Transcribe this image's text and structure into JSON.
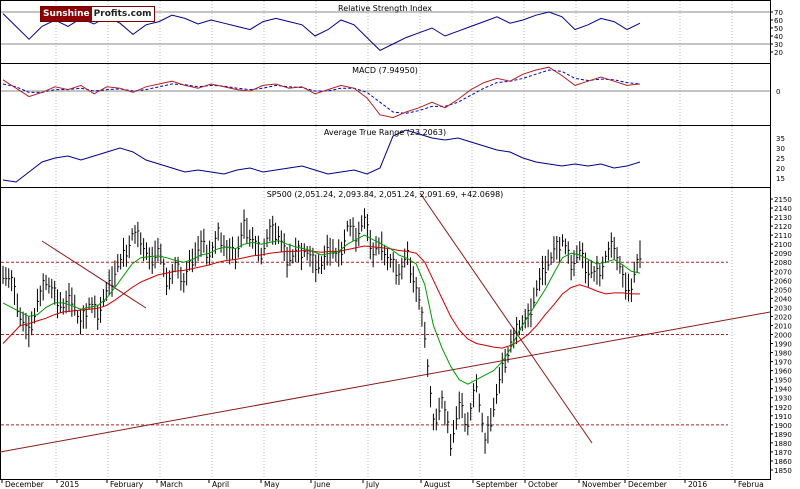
{
  "logo": {
    "part1": "Sunshine",
    "part2": "Profits.com"
  },
  "chart_data": [
    {
      "type": "line",
      "title": "Relative Strength Index",
      "ylim": [
        10,
        80
      ],
      "y_ticks": [
        70,
        60,
        50,
        40,
        30,
        20
      ],
      "reference_lines": [
        70,
        30
      ],
      "series": [
        {
          "values": [
            68,
            52,
            36,
            52,
            60,
            52,
            62,
            55,
            64,
            56,
            42,
            54,
            58,
            66,
            62,
            55,
            60,
            56,
            52,
            48,
            58,
            62,
            58,
            54,
            40,
            48,
            60,
            54,
            38,
            22,
            30,
            38,
            44,
            50,
            40,
            46,
            52,
            58,
            64,
            56,
            60,
            66,
            70,
            64,
            48,
            54,
            62,
            58,
            48,
            56
          ]
        }
      ]
    },
    {
      "type": "line",
      "title": "MACD (7.94950)",
      "y_ticks": [
        0
      ],
      "series": [
        {
          "values": [
            16,
            4,
            -8,
            -2,
            6,
            2,
            8,
            -4,
            6,
            4,
            -2,
            6,
            10,
            14,
            8,
            4,
            10,
            6,
            2,
            0,
            8,
            10,
            4,
            6,
            -4,
            2,
            8,
            4,
            -10,
            -34,
            -38,
            -30,
            -24,
            -16,
            -24,
            -12,
            2,
            12,
            18,
            14,
            24,
            30,
            34,
            22,
            8,
            14,
            20,
            14,
            8,
            10
          ]
        },
        {
          "values": [
            10,
            6,
            -2,
            -2,
            2,
            2,
            4,
            0,
            2,
            3,
            0,
            2,
            6,
            10,
            9,
            6,
            8,
            7,
            4,
            2,
            4,
            8,
            6,
            5,
            0,
            0,
            4,
            4,
            -2,
            -16,
            -30,
            -32,
            -28,
            -22,
            -22,
            -16,
            -6,
            4,
            12,
            14,
            18,
            24,
            30,
            28,
            18,
            15,
            17,
            16,
            12,
            10
          ]
        }
      ]
    },
    {
      "type": "line",
      "title": "Average True Range (23.2063)",
      "ylim": [
        11,
        40
      ],
      "y_ticks": [
        35,
        30,
        25,
        20,
        15
      ],
      "series": [
        {
          "values": [
            14,
            13,
            18,
            23,
            25,
            26,
            24,
            26,
            28,
            30,
            28,
            24,
            22,
            20,
            18,
            19,
            18,
            17,
            19,
            20,
            18,
            19,
            20,
            21,
            19,
            17,
            18,
            19,
            17,
            20,
            36,
            39,
            37,
            35,
            34,
            35,
            33,
            31,
            29,
            28,
            25,
            23,
            22,
            21,
            22,
            21,
            22,
            20,
            21,
            23
          ]
        }
      ]
    },
    {
      "type": "line",
      "title": "SP500 (2,051.24, 2,093.84, 2,051.24, 2,091.69, +42.0698)",
      "ylim": [
        1845,
        2155
      ],
      "y_ticks": [
        2150,
        2140,
        2130,
        2120,
        2110,
        2100,
        2090,
        2080,
        2070,
        2060,
        2050,
        2040,
        2030,
        2020,
        2010,
        2000,
        1990,
        1980,
        1970,
        1960,
        1950,
        1940,
        1930,
        1920,
        1910,
        1900,
        1890,
        1880,
        1870,
        1860,
        1850
      ],
      "x_labels": [
        "December",
        "2015",
        "February",
        "March",
        "April",
        "May",
        "June",
        "July",
        "August",
        "September",
        "October",
        "November",
        "December",
        "2016",
        "Februa"
      ],
      "horizontal_levels": [
        2080,
        2000,
        1900
      ],
      "series": [
        {
          "name": "",
          "values": [
            2070,
            2060,
            2020,
            2000,
            2035,
            2060,
            2045,
            2030,
            2040,
            2010,
            2035,
            2025,
            2045,
            2070,
            2085,
            2110,
            2105,
            2080,
            2095,
            2060,
            2075,
            2060,
            2085,
            2100,
            2090,
            2110,
            2095,
            2085,
            2120,
            2105,
            2090,
            2115,
            2110,
            2085,
            2090,
            2095,
            2080,
            2075,
            2095,
            2085,
            2120,
            2110,
            2125,
            2090,
            2100,
            2080,
            2070,
            2085,
            2050,
            2000,
            1900,
            1930,
            1880,
            1920,
            1900,
            1950,
            1880,
            1920,
            1960,
            1990,
            2010,
            2020,
            2050,
            2075,
            2090,
            2105,
            2080,
            2090,
            2070,
            2065,
            2085,
            2100,
            2060,
            2050,
            2090
          ]
        },
        {
          "name": "",
          "values": [
            2035,
            2030,
            2025,
            2020,
            2022,
            2030,
            2035,
            2035,
            2032,
            2028,
            2030,
            2032,
            2040,
            2052,
            2065,
            2078,
            2085,
            2086,
            2087,
            2085,
            2082,
            2080,
            2083,
            2088,
            2090,
            2095,
            2097,
            2095,
            2100,
            2102,
            2100,
            2102,
            2104,
            2100,
            2097,
            2095,
            2092,
            2088,
            2090,
            2092,
            2100,
            2105,
            2110,
            2105,
            2100,
            2095,
            2088,
            2084,
            2078,
            2055,
            2010,
            1985,
            1965,
            1950,
            1945,
            1950,
            1955,
            1960,
            1970,
            1985,
            2005,
            2020,
            2035,
            2050,
            2068,
            2085,
            2090,
            2088,
            2083,
            2078,
            2080,
            2083,
            2077,
            2070,
            2068
          ]
        },
        {
          "name": "",
          "values": [
            1990,
            2000,
            2010,
            2012,
            2015,
            2018,
            2022,
            2025,
            2026,
            2027,
            2028,
            2029,
            2032,
            2038,
            2045,
            2052,
            2058,
            2062,
            2066,
            2068,
            2070,
            2071,
            2073,
            2075,
            2077,
            2080,
            2082,
            2083,
            2085,
            2087,
            2088,
            2090,
            2091,
            2092,
            2092,
            2093,
            2092,
            2091,
            2092,
            2092,
            2094,
            2096,
            2098,
            2097,
            2096,
            2095,
            2093,
            2092,
            2090,
            2080,
            2060,
            2040,
            2020,
            2005,
            1995,
            1990,
            1988,
            1986,
            1985,
            1988,
            1993,
            2000,
            2010,
            2022,
            2033,
            2045,
            2052,
            2055,
            2052,
            2048,
            2045,
            2046,
            2046,
            2045,
            2045
          ]
        }
      ]
    }
  ]
}
